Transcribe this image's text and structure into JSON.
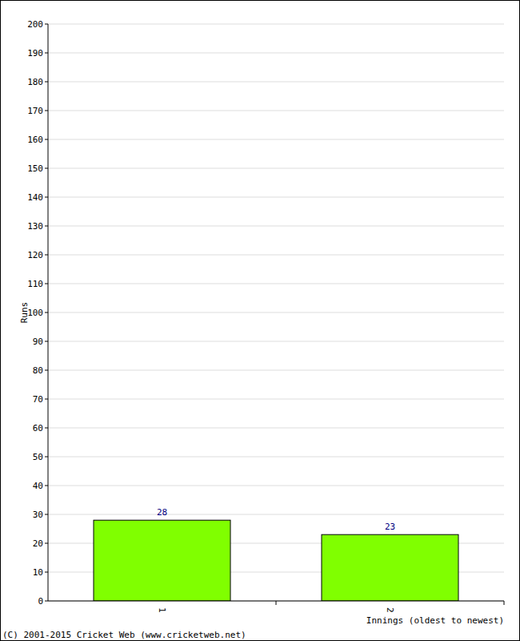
{
  "chart_data": {
    "type": "bar",
    "categories": [
      "1",
      "2"
    ],
    "values": [
      28,
      23
    ],
    "color": "#80ff00",
    "x_label": "Innings (oldest to newest)",
    "y_label": "Runs",
    "annotations": [
      "(C) 2001-2015 Cricket Web (www.cricketweb.net)"
    ],
    "ylim": [
      0,
      200
    ],
    "yticks": [
      0,
      10,
      20,
      30,
      40,
      50,
      60,
      70,
      80,
      90,
      100,
      110,
      120,
      130,
      140,
      150,
      160,
      170,
      180,
      190,
      200
    ],
    "grid": true,
    "data_labels": true
  }
}
